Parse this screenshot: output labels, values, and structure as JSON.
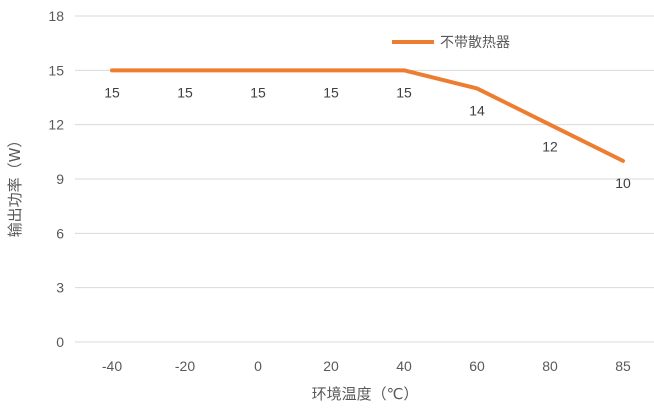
{
  "chart_data": {
    "type": "line",
    "categories": [
      "-40",
      "-20",
      "0",
      "20",
      "40",
      "60",
      "80",
      "85"
    ],
    "series": [
      {
        "name": "不带散热器",
        "values": [
          15,
          15,
          15,
          15,
          15,
          14,
          12,
          10
        ],
        "color": "#ED7D31"
      }
    ],
    "xlabel": "环境温度（℃）",
    "ylabel": "输出功率（W）",
    "ylim": [
      0,
      18
    ],
    "yticks": [
      0,
      3,
      6,
      9,
      12,
      15,
      18
    ],
    "grid": true,
    "legend_position": "top-right"
  }
}
